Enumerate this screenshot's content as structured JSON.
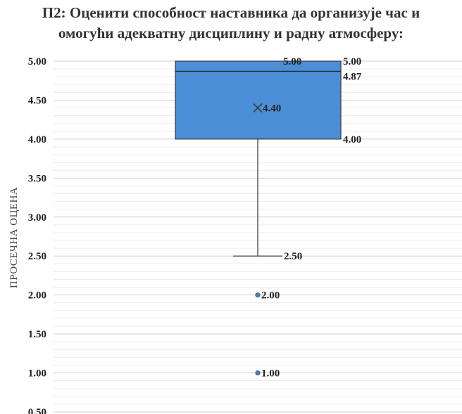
{
  "chart_data": {
    "type": "box",
    "title_lines": [
      "П2: Оценити способност наставника да организује час и",
      "омогући адекватну дисциплину и радну атмосферу:"
    ],
    "ylabel": "ПРОСЕЧНА ОЦЕНА",
    "xlabel": "",
    "ylim": [
      0.5,
      5.0
    ],
    "y_ticks": [
      "5.00",
      "4.50",
      "4.00",
      "3.50",
      "3.00",
      "2.50",
      "2.00",
      "1.50",
      "1.00",
      "0.50"
    ],
    "grid": true,
    "box": {
      "q1": 4.0,
      "median": 4.87,
      "q3": 5.0,
      "mean": 4.4,
      "whisker_low": 2.5,
      "whisker_high": 5.0,
      "outliers": [
        2.0,
        1.0
      ]
    },
    "data_labels": [
      {
        "value": 5.0,
        "text": "5.00"
      },
      {
        "value": 5.0,
        "text": "5.00"
      },
      {
        "value": 4.87,
        "text": "4.87"
      },
      {
        "value": 4.4,
        "text": "4.40"
      },
      {
        "value": 4.0,
        "text": "4.00"
      },
      {
        "value": 2.5,
        "text": "2.50"
      },
      {
        "value": 2.0,
        "text": "2.00"
      },
      {
        "value": 1.0,
        "text": "1.00"
      }
    ],
    "colors": {
      "box_fill": "#4a8fd8",
      "box_stroke": "#3a3a3a",
      "whisker": "#333333",
      "outlier": "#4a7fc0",
      "grid_major": "#cfcfcf",
      "grid_minor": "#ececec"
    }
  }
}
